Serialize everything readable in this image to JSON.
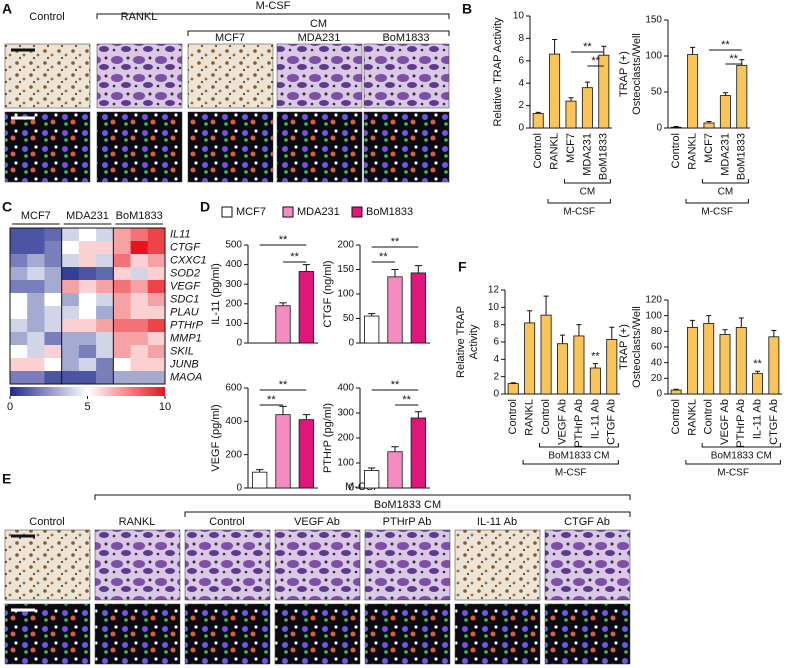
{
  "panel_labels": [
    "A",
    "B",
    "C",
    "D",
    "E",
    "F"
  ],
  "panel_a": {
    "groups": [
      "M-CSF",
      "CM"
    ],
    "columns": [
      "Control",
      "RANKL",
      "MCF7",
      "MDA231",
      "BoM1833"
    ]
  },
  "panel_e": {
    "groups": [
      "M-CSF",
      "BoM1833 CM"
    ],
    "columns": [
      "Control",
      "RANKL",
      "Control",
      "VEGF Ab",
      "PTHrP Ab",
      "IL-11 Ab",
      "CTGF Ab"
    ]
  },
  "heatmap": {
    "type": "heatmap",
    "groups": [
      "MCF7",
      "MDA231",
      "BoM1833"
    ],
    "genes": [
      "IL11",
      "CTGF",
      "CXXC1",
      "SOD2",
      "VEGF",
      "SDC1",
      "PLAU",
      "PTHrP",
      "MMP1",
      "SKIL",
      "JUNB",
      "MAOA"
    ],
    "gene_colors": [
      "#e41a1c",
      "#e41a1c",
      "#111111",
      "#111111",
      "#e41a1c",
      "#111111",
      "#111111",
      "#e41a1c",
      "#111111",
      "#111111",
      "#111111",
      "#111111"
    ],
    "values": [
      [
        1,
        1,
        1.5,
        4,
        5,
        4,
        7,
        8,
        9
      ],
      [
        1,
        1,
        2,
        5,
        6,
        6,
        7,
        10,
        9
      ],
      [
        2,
        3,
        2,
        4,
        6,
        4,
        8,
        6,
        7
      ],
      [
        3,
        4,
        3,
        0.5,
        1,
        1.5,
        6,
        4,
        6
      ],
      [
        2,
        2,
        3,
        7,
        6,
        7,
        8,
        7,
        9
      ],
      [
        5,
        3,
        5,
        3,
        5,
        4,
        7,
        6,
        7
      ],
      [
        5,
        3,
        4,
        4,
        5,
        3,
        7,
        6,
        6
      ],
      [
        4,
        3,
        4,
        6,
        6,
        7,
        8,
        8,
        9
      ],
      [
        3,
        4,
        2,
        3,
        3,
        4,
        7,
        7,
        6
      ],
      [
        5,
        4,
        6,
        3,
        2,
        4,
        7,
        6,
        7
      ],
      [
        6,
        6,
        5,
        3,
        4,
        2,
        5,
        6,
        6
      ],
      [
        2,
        2,
        1,
        1,
        1,
        2,
        3,
        3,
        3
      ]
    ],
    "colorbar_lim": [
      0,
      10
    ],
    "colorbar_ticks": [
      0,
      5,
      10
    ],
    "colors": [
      "#1f2a8c",
      "#ffffff",
      "#e8141c"
    ]
  },
  "d_legend": [
    {
      "name": "MCF7",
      "color": "#ffffff"
    },
    {
      "name": "MDA231",
      "color": "#f58cc0"
    },
    {
      "name": "BoM1833",
      "color": "#e0177a"
    }
  ],
  "chart_data": [
    {
      "type": "bar",
      "ylabel": [
        "Relative TRAP Activity"
      ],
      "categories": [
        "Control",
        "RANKL",
        "MCF7",
        "MDA231",
        "BoM1833"
      ],
      "values": [
        1.3,
        6.6,
        2.4,
        3.6,
        6.5
      ],
      "errors": [
        0.1,
        1.3,
        0.3,
        0.5,
        0.8
      ],
      "color": "#f9c45a",
      "ylim": [
        0,
        10
      ],
      "yticks": [
        0,
        2,
        4,
        6,
        8,
        10
      ],
      "annotations": [
        "**",
        "**"
      ],
      "brackets": [
        "CM",
        "M-CSF"
      ]
    },
    {
      "type": "bar",
      "ylabel": [
        "TRAP (+)",
        "Osteoclasts/Well"
      ],
      "categories": [
        "Control",
        "RANKL",
        "MCF7",
        "MDA231",
        "BoM1833"
      ],
      "values": [
        1,
        102,
        7,
        45,
        87
      ],
      "errors": [
        1,
        10,
        2,
        4,
        8
      ],
      "color": "#f9c45a",
      "ylim": [
        0,
        150
      ],
      "yticks": [
        0,
        50,
        100,
        150
      ],
      "annotations": [
        "**",
        "**"
      ],
      "brackets": [
        "CM",
        "M-CSF"
      ]
    },
    {
      "type": "bar",
      "ylabel": [
        "IL-11 (pg/ml)"
      ],
      "values": [
        0,
        190,
        365
      ],
      "errors": [
        0,
        15,
        35
      ],
      "ylim": [
        0,
        500
      ],
      "yticks": [
        0,
        100,
        200,
        300,
        400,
        500
      ],
      "annotations": [
        "**",
        "**"
      ]
    },
    {
      "type": "bar",
      "ylabel": [
        "CTGF (ng/ml)"
      ],
      "values": [
        55,
        135,
        143
      ],
      "errors": [
        5,
        15,
        15
      ],
      "ylim": [
        0,
        200
      ],
      "yticks": [
        0,
        50,
        100,
        150,
        200
      ],
      "annotations": [
        "**",
        "**"
      ]
    },
    {
      "type": "bar",
      "ylabel": [
        "VEGF (pg/ml)"
      ],
      "values": [
        95,
        440,
        410
      ],
      "errors": [
        15,
        50,
        30
      ],
      "ylim": [
        0,
        600
      ],
      "yticks": [
        0,
        200,
        400,
        600
      ],
      "annotations": [
        "**",
        "**"
      ]
    },
    {
      "type": "bar",
      "ylabel": [
        "PTHrP (pg/ml)"
      ],
      "values": [
        70,
        145,
        280
      ],
      "errors": [
        10,
        20,
        25
      ],
      "ylim": [
        0,
        400
      ],
      "yticks": [
        0,
        100,
        200,
        300,
        400
      ],
      "annotations": [
        "**",
        "**"
      ]
    },
    {
      "type": "bar",
      "ylabel": [
        "Relative TRAP",
        "Activity"
      ],
      "categories": [
        "Control",
        "RANKL",
        "Control",
        "VEGF Ab",
        "PTHrP Ab",
        "IL-11 Ab",
        "CTGF Ab"
      ],
      "values": [
        1.2,
        8.2,
        9.1,
        5.8,
        6.7,
        3.0,
        6.3
      ],
      "errors": [
        0.1,
        1.4,
        2.2,
        1.0,
        1.3,
        0.5,
        1.4
      ],
      "color": "#f9c45a",
      "ylim": [
        0,
        12
      ],
      "yticks": [
        0,
        2,
        4,
        6,
        8,
        10,
        12
      ],
      "annotations": [
        "**"
      ],
      "brackets": [
        "BoM1833 CM",
        "M-CSF"
      ]
    },
    {
      "type": "bar",
      "ylabel": [
        "TRAP (+)",
        "Osteoclasts/Well"
      ],
      "categories": [
        "Control",
        "RANKL",
        "Control",
        "VEGF Ab",
        "PTHrP Ab",
        "IL-11 Ab",
        "CTGF Ab"
      ],
      "values": [
        5,
        85,
        90,
        76,
        85,
        26,
        73
      ],
      "errors": [
        1,
        9,
        10,
        6,
        12,
        3,
        8
      ],
      "color": "#f9c45a",
      "ylim": [
        0,
        120
      ],
      "yticks": [
        0,
        20,
        40,
        60,
        80,
        100,
        120
      ],
      "annotations": [
        "**"
      ],
      "brackets": [
        "BoM1833 CM",
        "M-CSF"
      ]
    }
  ]
}
